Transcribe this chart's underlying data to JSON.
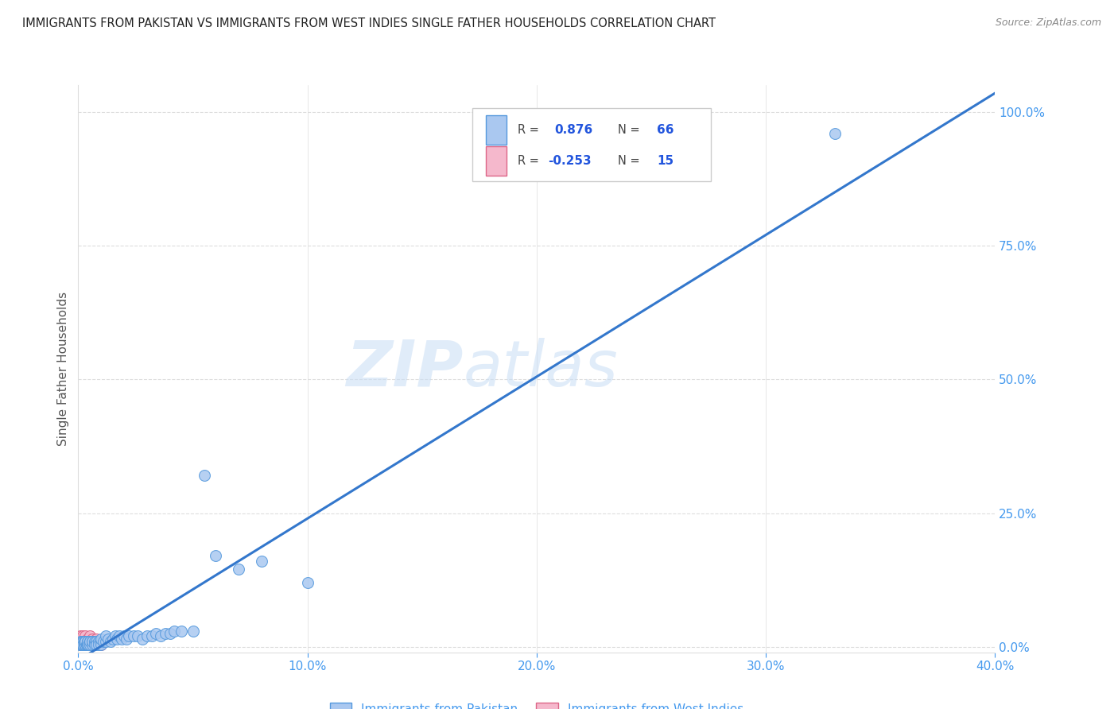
{
  "title": "IMMIGRANTS FROM PAKISTAN VS IMMIGRANTS FROM WEST INDIES SINGLE FATHER HOUSEHOLDS CORRELATION CHART",
  "source": "Source: ZipAtlas.com",
  "ylabel": "Single Father Households",
  "ytick_values": [
    0,
    0.25,
    0.5,
    0.75,
    1.0
  ],
  "xtick_values": [
    0,
    0.1,
    0.2,
    0.3,
    0.4
  ],
  "xlim": [
    0,
    0.4
  ],
  "ylim": [
    -0.01,
    1.05
  ],
  "watermark_line1": "ZIP",
  "watermark_line2": "atlas",
  "series": [
    {
      "name": "Immigrants from Pakistan",
      "color": "#aac8f0",
      "edge_color": "#5599dd",
      "R": 0.876,
      "N": 66,
      "line_color": "#3377cc",
      "scatter_x": [
        0.0005,
        0.001,
        0.001,
        0.0015,
        0.0015,
        0.002,
        0.002,
        0.002,
        0.002,
        0.0025,
        0.0025,
        0.003,
        0.003,
        0.003,
        0.0035,
        0.0035,
        0.004,
        0.004,
        0.004,
        0.0045,
        0.005,
        0.005,
        0.005,
        0.006,
        0.006,
        0.006,
        0.007,
        0.007,
        0.008,
        0.008,
        0.009,
        0.009,
        0.01,
        0.01,
        0.01,
        0.011,
        0.012,
        0.012,
        0.013,
        0.014,
        0.015,
        0.016,
        0.017,
        0.018,
        0.019,
        0.02,
        0.021,
        0.022,
        0.024,
        0.026,
        0.028,
        0.03,
        0.032,
        0.034,
        0.036,
        0.038,
        0.04,
        0.042,
        0.045,
        0.05,
        0.055,
        0.06,
        0.07,
        0.08,
        0.1,
        0.33
      ],
      "scatter_y": [
        0.005,
        0.01,
        0.005,
        0.01,
        0.005,
        0.01,
        0.005,
        0.01,
        0.005,
        0.01,
        0.005,
        0.01,
        0.005,
        0.01,
        0.005,
        0.005,
        0.01,
        0.005,
        0.01,
        0.005,
        0.01,
        0.005,
        0.01,
        0.01,
        0.005,
        0.01,
        0.01,
        0.005,
        0.01,
        0.005,
        0.01,
        0.005,
        0.01,
        0.005,
        0.015,
        0.01,
        0.01,
        0.02,
        0.015,
        0.01,
        0.015,
        0.02,
        0.015,
        0.02,
        0.015,
        0.02,
        0.015,
        0.02,
        0.02,
        0.02,
        0.015,
        0.02,
        0.02,
        0.025,
        0.02,
        0.025,
        0.025,
        0.03,
        0.03,
        0.03,
        0.32,
        0.17,
        0.145,
        0.16,
        0.12,
        0.96
      ],
      "trend_y_intercept": -0.025,
      "trend_slope": 2.65
    },
    {
      "name": "Immigrants from West Indies",
      "color": "#f5b8cc",
      "edge_color": "#dd6688",
      "R": -0.253,
      "N": 15,
      "scatter_x": [
        0.0005,
        0.001,
        0.0015,
        0.002,
        0.002,
        0.003,
        0.003,
        0.004,
        0.005,
        0.005,
        0.006,
        0.007,
        0.008,
        0.009,
        0.01
      ],
      "scatter_y": [
        0.01,
        0.02,
        0.015,
        0.02,
        0.01,
        0.02,
        0.01,
        0.015,
        0.02,
        0.01,
        0.015,
        0.01,
        0.015,
        0.01,
        0.005
      ]
    }
  ],
  "legend_R_color": "#2255dd",
  "legend_N_color": "#2255dd",
  "title_color": "#222222",
  "axis_label_color": "#555555",
  "right_tick_color": "#4499ee",
  "bottom_tick_color": "#4499ee",
  "grid_color": "#dddddd",
  "background_color": "#ffffff"
}
